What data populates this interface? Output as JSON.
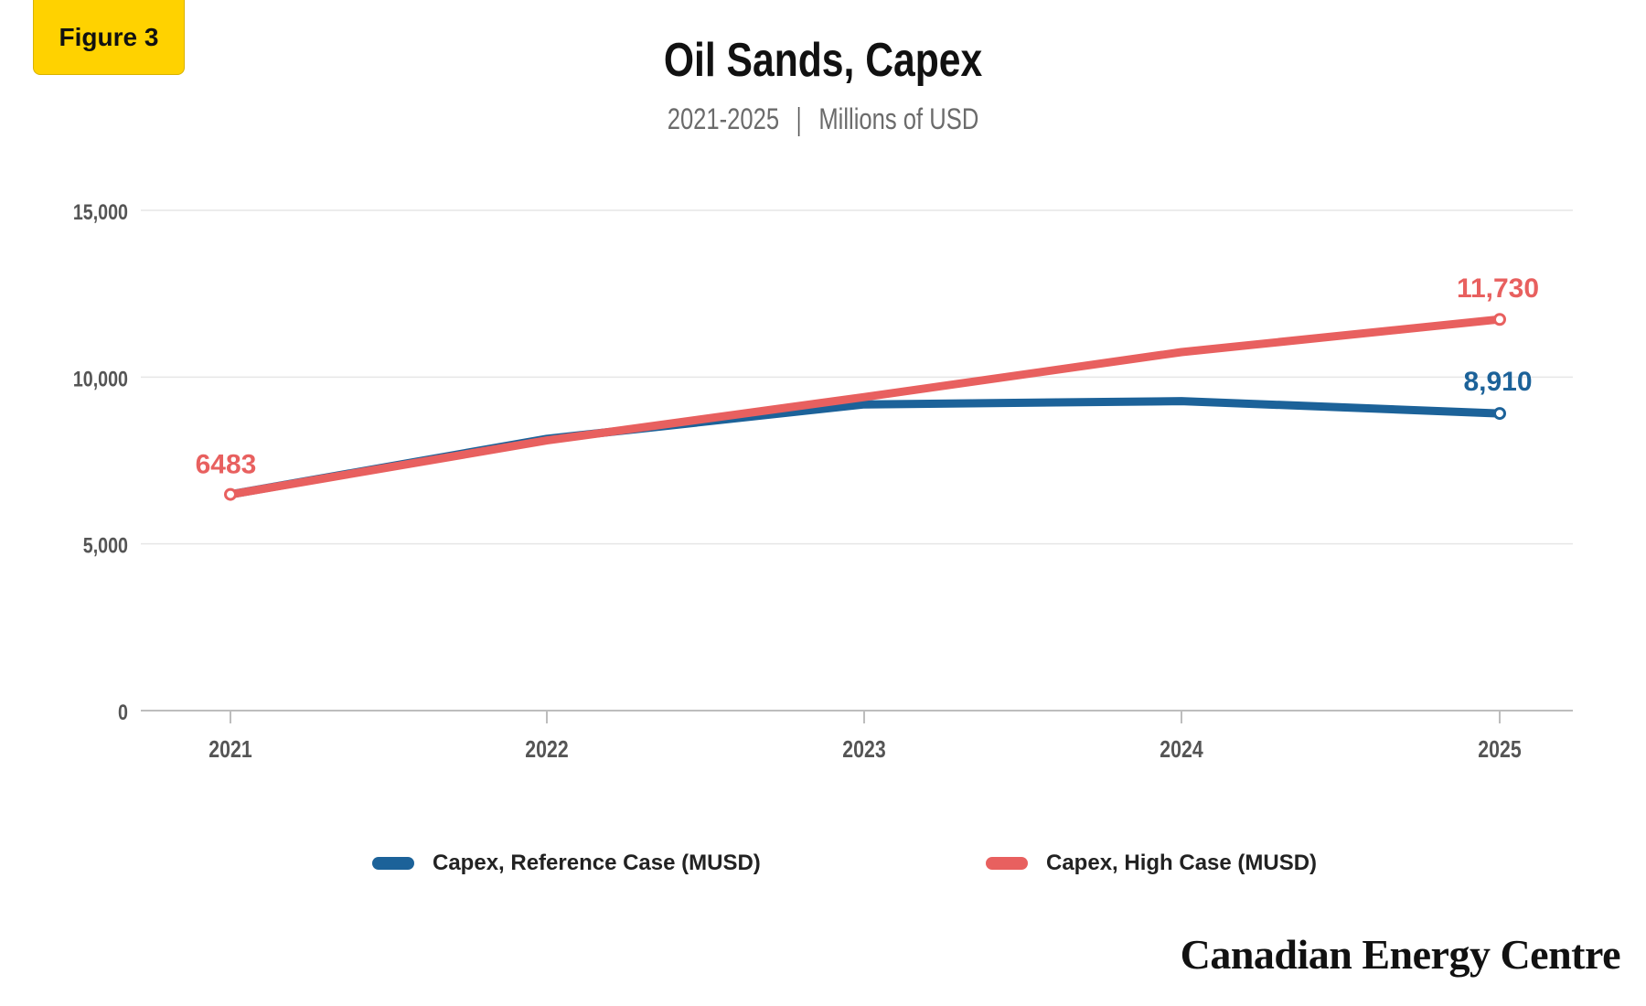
{
  "badge": "Figure 3",
  "header": {
    "title": "Oil Sands, Capex",
    "subtitle_range": "2021-2025",
    "subtitle_unit": "Millions of USD"
  },
  "brand": "Canadian Energy Centre",
  "colors": {
    "reference": "#1C6299",
    "high": "#E8605F",
    "grid": "#E6E6E6",
    "axis": "#BDBDBD",
    "tick_text": "#555555"
  },
  "chart_data": {
    "type": "line",
    "x": [
      "2021",
      "2022",
      "2023",
      "2024",
      "2025"
    ],
    "ylim": [
      0,
      15000
    ],
    "yticks": [
      0,
      5000,
      10000,
      15000
    ],
    "ytick_labels": [
      "0",
      "5,000",
      "10,000",
      "15,000"
    ],
    "grid": true,
    "legend_position": "bottom",
    "series": [
      {
        "name": "Capex, Reference Case (MUSD)",
        "color": "#1C6299",
        "values": [
          6483,
          8150,
          9180,
          9280,
          8910
        ],
        "end_label": "8,910"
      },
      {
        "name": "Capex, High Case (MUSD)",
        "color": "#E8605F",
        "values": [
          6483,
          8100,
          9400,
          10750,
          11730
        ],
        "start_label": "6483",
        "end_label": "11,730"
      }
    ]
  }
}
